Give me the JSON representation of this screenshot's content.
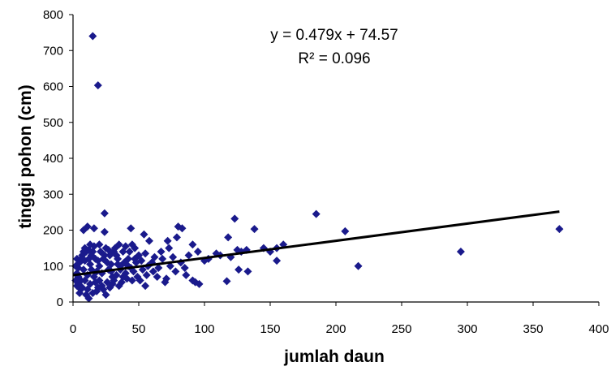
{
  "chart_data": {
    "type": "scatter",
    "xlabel": "jumlah daun",
    "ylabel": "tinggi pohon (cm)",
    "xlim": [
      0,
      400
    ],
    "ylim": [
      0,
      800
    ],
    "xticks": [
      "0",
      "50",
      "100",
      "150",
      "200",
      "250",
      "300",
      "350",
      "400"
    ],
    "yticks": [
      "0",
      "100",
      "200",
      "300",
      "400",
      "500",
      "600",
      "700",
      "800"
    ],
    "grid": false,
    "legend": "none",
    "marker": "diamond",
    "marker_color": "#1a1a8c",
    "trendline": {
      "type": "linear",
      "slope": 0.479,
      "intercept": 74.57,
      "x_range": [
        0,
        370
      ],
      "color": "#000000",
      "equation": "y = 0.479x + 74.57",
      "r_squared": "R² = 0.096"
    },
    "points": [
      [
        15,
        740
      ],
      [
        19,
        603
      ],
      [
        24,
        247
      ],
      [
        185,
        245
      ],
      [
        123,
        232
      ],
      [
        16,
        205
      ],
      [
        11,
        210
      ],
      [
        8,
        200
      ],
      [
        44,
        205
      ],
      [
        80,
        210
      ],
      [
        83,
        205
      ],
      [
        138,
        203
      ],
      [
        207,
        197
      ],
      [
        370,
        203
      ],
      [
        54,
        188
      ],
      [
        24,
        195
      ],
      [
        118,
        180
      ],
      [
        79,
        180
      ],
      [
        91,
        160
      ],
      [
        160,
        160
      ],
      [
        155,
        150
      ],
      [
        132,
        145
      ],
      [
        125,
        145
      ],
      [
        109,
        135
      ],
      [
        95,
        140
      ],
      [
        72,
        170
      ],
      [
        58,
        170
      ],
      [
        47,
        150
      ],
      [
        155,
        115
      ],
      [
        217,
        100
      ],
      [
        295,
        140
      ],
      [
        133,
        85
      ],
      [
        126,
        90
      ],
      [
        117,
        58
      ],
      [
        93,
        55
      ],
      [
        91,
        60
      ],
      [
        96,
        50
      ],
      [
        71,
        65
      ],
      [
        70,
        55
      ],
      [
        55,
        45
      ],
      [
        45,
        60
      ],
      [
        40,
        80
      ],
      [
        36,
        90
      ],
      [
        30,
        70
      ],
      [
        28,
        40
      ],
      [
        25,
        20
      ],
      [
        18,
        30
      ],
      [
        12,
        10
      ],
      [
        10,
        20
      ],
      [
        6,
        35
      ],
      [
        4,
        50
      ],
      [
        3,
        80
      ],
      [
        5,
        110
      ],
      [
        7,
        130
      ],
      [
        9,
        150
      ],
      [
        13,
        160
      ],
      [
        15,
        140
      ],
      [
        17,
        120
      ],
      [
        20,
        100
      ],
      [
        22,
        80
      ],
      [
        26,
        110
      ],
      [
        28,
        130
      ],
      [
        32,
        150
      ],
      [
        34,
        120
      ],
      [
        36,
        100
      ],
      [
        38,
        140
      ],
      [
        42,
        120
      ],
      [
        44,
        95
      ],
      [
        48,
        110
      ],
      [
        50,
        130
      ],
      [
        53,
        90
      ],
      [
        56,
        75
      ],
      [
        60,
        110
      ],
      [
        62,
        125
      ],
      [
        65,
        95
      ],
      [
        68,
        120
      ],
      [
        74,
        100
      ],
      [
        76,
        125
      ],
      [
        82,
        110
      ],
      [
        85,
        95
      ],
      [
        88,
        130
      ],
      [
        100,
        115
      ],
      [
        103,
        120
      ],
      [
        112,
        130
      ],
      [
        120,
        125
      ],
      [
        128,
        140
      ],
      [
        145,
        150
      ],
      [
        150,
        140
      ],
      [
        20,
        60
      ],
      [
        22,
        45
      ],
      [
        16,
        70
      ],
      [
        14,
        90
      ],
      [
        12,
        120
      ],
      [
        11,
        75
      ],
      [
        9,
        60
      ],
      [
        8,
        90
      ],
      [
        7,
        40
      ],
      [
        6,
        60
      ],
      [
        5,
        25
      ],
      [
        4,
        70
      ],
      [
        3,
        45
      ],
      [
        2,
        100
      ],
      [
        2,
        60
      ],
      [
        3,
        120
      ],
      [
        10,
        140
      ],
      [
        14,
        130
      ],
      [
        18,
        85
      ],
      [
        21,
        140
      ],
      [
        24,
        130
      ],
      [
        27,
        90
      ],
      [
        29,
        105
      ],
      [
        31,
        60
      ],
      [
        33,
        75
      ],
      [
        35,
        45
      ],
      [
        37,
        55
      ],
      [
        39,
        110
      ],
      [
        41,
        65
      ],
      [
        43,
        140
      ],
      [
        46,
        85
      ],
      [
        49,
        70
      ],
      [
        52,
        115
      ],
      [
        57,
        100
      ],
      [
        61,
        85
      ],
      [
        64,
        70
      ],
      [
        67,
        140
      ],
      [
        73,
        150
      ],
      [
        78,
        85
      ],
      [
        86,
        75
      ],
      [
        23,
        35
      ],
      [
        26,
        55
      ],
      [
        19,
        40
      ],
      [
        13,
        50
      ],
      [
        11,
        35
      ],
      [
        15,
        25
      ],
      [
        17,
        55
      ],
      [
        30,
        50
      ],
      [
        33,
        130
      ],
      [
        25,
        150
      ],
      [
        27,
        145
      ],
      [
        31,
        140
      ],
      [
        35,
        160
      ],
      [
        40,
        155
      ],
      [
        45,
        160
      ],
      [
        20,
        160
      ],
      [
        16,
        155
      ],
      [
        12,
        145
      ],
      [
        8,
        140
      ],
      [
        6,
        120
      ],
      [
        4,
        95
      ],
      [
        9,
        115
      ],
      [
        13,
        105
      ],
      [
        19,
        115
      ],
      [
        23,
        120
      ],
      [
        29,
        85
      ],
      [
        34,
        105
      ],
      [
        38,
        70
      ],
      [
        42,
        100
      ],
      [
        47,
        120
      ],
      [
        51,
        60
      ],
      [
        55,
        135
      ]
    ]
  }
}
